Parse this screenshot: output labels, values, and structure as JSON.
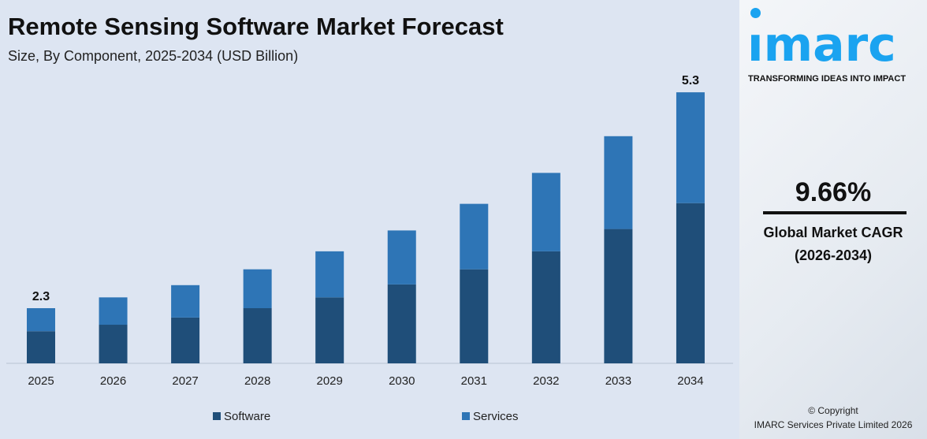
{
  "chart_data": {
    "type": "bar",
    "stacked": true,
    "title": "Remote Sensing Software Market Forecast",
    "subtitle": "Size, By Component, 2025-2034 (USD Billion)",
    "categories": [
      "2025",
      "2026",
      "2027",
      "2028",
      "2029",
      "2030",
      "2031",
      "2032",
      "2033",
      "2034"
    ],
    "series": [
      {
        "name": "Software",
        "color": "#1f4e79",
        "values": [
          1.98,
          2.07,
          2.17,
          2.3,
          2.45,
          2.63,
          2.84,
          3.09,
          3.4,
          3.76
        ]
      },
      {
        "name": "Services",
        "color": "#2e75b6",
        "values": [
          0.32,
          0.38,
          0.45,
          0.54,
          0.64,
          0.75,
          0.91,
          1.09,
          1.29,
          1.54
        ]
      }
    ],
    "data_labels": {
      "2025": "2.3",
      "2034": "5.3"
    },
    "legend": "bottom",
    "grid": false
  },
  "brand": {
    "logo_text": "imarc",
    "tagline": "TRANSFORMING IDEAS INTO IMPACT",
    "color": "#1aa3f0"
  },
  "cagr": {
    "value": "9.66%",
    "label": "Global Market CAGR",
    "period": "(2026-2034)"
  },
  "footer": {
    "copyright": "© Copyright",
    "company": "IMARC Services Private Limited 2026"
  }
}
